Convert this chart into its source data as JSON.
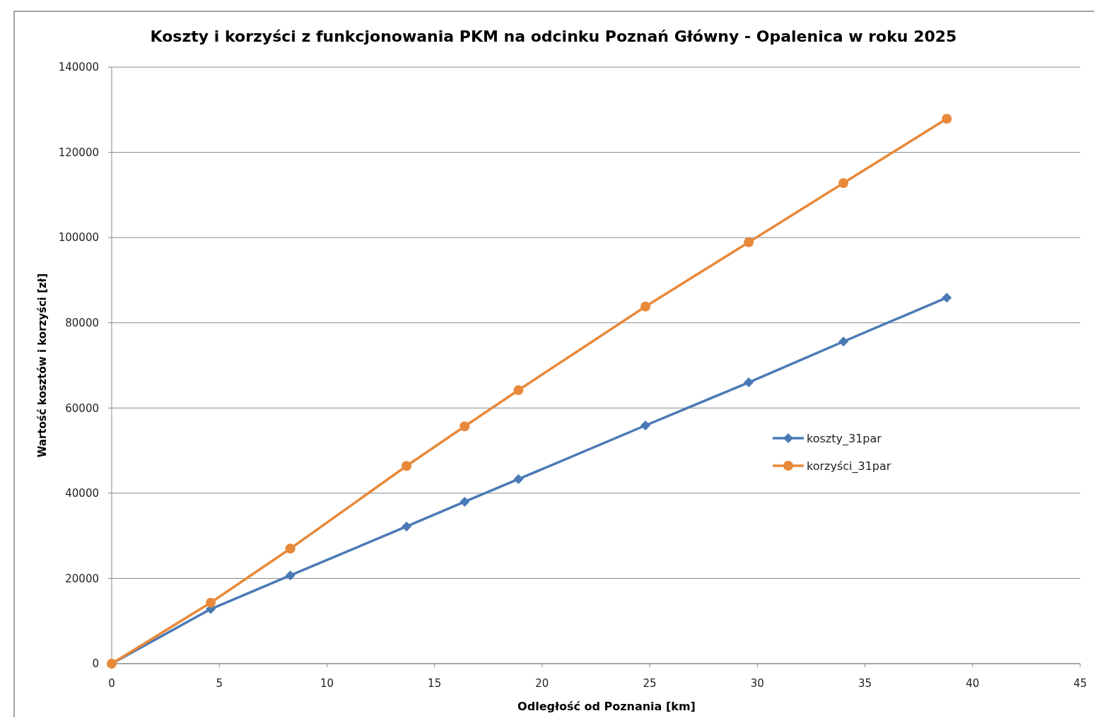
{
  "chart_data": {
    "type": "line",
    "title": "Koszty i korzyści z funkcjonowania PKM na odcinku Poznań Główny  - Opalenica w roku 2025",
    "xlabel": "Odległość od Poznania  [km]",
    "ylabel": "Wartość kosztów  i korzyści [zł]",
    "x": [
      0,
      4.6,
      8.3,
      13.7,
      16.4,
      18.9,
      24.8,
      29.6,
      34.0,
      38.8
    ],
    "series": [
      {
        "name": "koszty_31par",
        "color": "#4a7ab5",
        "marker": "diamond",
        "values": [
          0,
          12800,
          20700,
          32200,
          38000,
          43300,
          55900,
          66000,
          75600,
          85900
        ]
      },
      {
        "name": "korzyści_31par",
        "color": "#e8893a",
        "marker": "circle",
        "values": [
          0,
          14300,
          27000,
          46400,
          55700,
          64200,
          83800,
          98900,
          112800,
          127900
        ]
      }
    ],
    "xlim": [
      0,
      45
    ],
    "xticks": [
      0,
      5,
      10,
      15,
      20,
      25,
      30,
      35,
      40,
      45
    ],
    "ylim": [
      0,
      140000
    ],
    "yticks": [
      0,
      20000,
      40000,
      60000,
      80000,
      100000,
      120000,
      140000
    ],
    "grid": "y",
    "legend": "right",
    "line_style": "solid"
  }
}
